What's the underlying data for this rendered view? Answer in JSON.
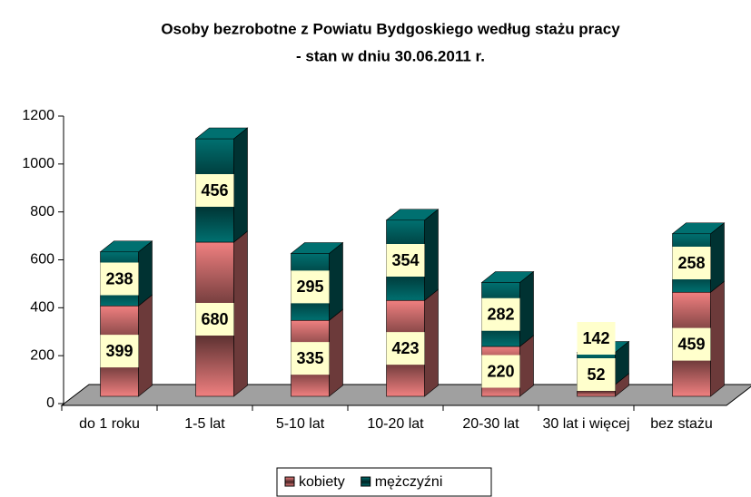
{
  "chart_data": {
    "type": "bar3d_stacked",
    "title": "Osoby bezrobotne z Powiatu Bydgoskiego według stażu pracy",
    "subtitle": "- stan w dniu 30.06.2011 r.",
    "categories": [
      "do 1 roku",
      "1-5 lat",
      "5-10 lat",
      "10-20 lat",
      "20-30 lat",
      "30 lat i więcej",
      "bez stażu"
    ],
    "series": [
      {
        "name": "kobiety",
        "color": "#f08080",
        "values": [
          399,
          680,
          335,
          423,
          220,
          52,
          459
        ]
      },
      {
        "name": "mężczyźni",
        "color": "#007070",
        "values": [
          238,
          456,
          295,
          354,
          282,
          142,
          258
        ]
      }
    ],
    "ylim": [
      0,
      1200
    ],
    "yticks": [
      0,
      200,
      400,
      600,
      800,
      1000,
      1200
    ],
    "legend": "bottom"
  }
}
